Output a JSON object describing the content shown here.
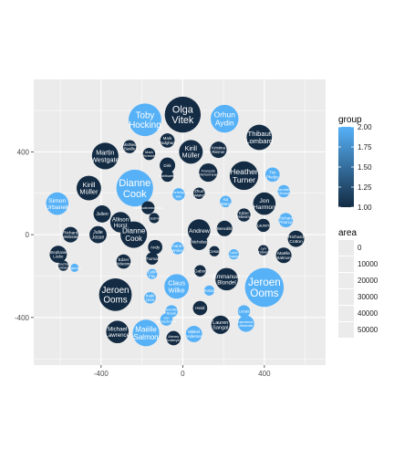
{
  "chart_data": {
    "type": "scatter",
    "subtype": "bubble",
    "title": "",
    "xlabel": "",
    "ylabel": "",
    "xlim": [
      -730,
      700
    ],
    "ylim": [
      -630,
      750
    ],
    "x_ticks": [
      -400,
      0,
      400
    ],
    "x_tick_labels": [
      "-400",
      "0",
      "400"
    ],
    "y_ticks": [
      -400,
      0,
      400
    ],
    "y_tick_labels": [
      "-400",
      "0",
      "400"
    ],
    "grid": true,
    "panel_background": "#ebebeb",
    "grid_major_color": "#ffffff",
    "color_scale": {
      "low": "#132b43",
      "high": "#56b1f7",
      "domain": [
        1.0,
        2.0
      ]
    },
    "legend_group": {
      "title": "group",
      "position": "right",
      "ticks": [
        2.0,
        1.75,
        1.5,
        1.25,
        1.0
      ],
      "tick_labels": [
        "2.00",
        "1.75",
        "1.50",
        "1.25",
        "1.00"
      ]
    },
    "legend_area": {
      "title": "area",
      "position": "right",
      "values": [
        0,
        10000,
        20000,
        30000,
        40000,
        50000
      ],
      "labels": [
        "0",
        "10000",
        "20000",
        "30000",
        "40000",
        "50000"
      ]
    },
    "bubbles": [
      {
        "label": "Olga Vitek",
        "x": 0,
        "y": 580,
        "r": 88,
        "group": 1
      },
      {
        "label": "Toby Hocking",
        "x": -185,
        "y": 555,
        "r": 80,
        "group": 2
      },
      {
        "label": "Orhun Aydin",
        "x": 205,
        "y": 560,
        "r": 68,
        "group": 2
      },
      {
        "label": "Thibaut Lombard",
        "x": 375,
        "y": 470,
        "r": 62,
        "group": 1
      },
      {
        "label": "Mark Padgham",
        "x": -75,
        "y": 455,
        "r": 35,
        "group": 1
      },
      {
        "label": "Mathieu Basille",
        "x": -260,
        "y": 425,
        "r": 32,
        "group": 1
      },
      {
        "label": "Mark Hornick",
        "x": -165,
        "y": 390,
        "r": 30,
        "group": 1
      },
      {
        "label": "Martin Westgate",
        "x": -380,
        "y": 380,
        "r": 65,
        "group": 1
      },
      {
        "label": "Kirill Müller",
        "x": 40,
        "y": 400,
        "r": 58,
        "group": 1
      },
      {
        "label": "Kristina Riemer",
        "x": 175,
        "y": 410,
        "r": 40,
        "group": 1
      },
      {
        "label": "Dirk",
        "x": -75,
        "y": 335,
        "r": 38,
        "group": 1
      },
      {
        "label": "François Michonneau",
        "x": 125,
        "y": 300,
        "r": 45,
        "group": 1
      },
      {
        "label": "Heather Turner",
        "x": 300,
        "y": 285,
        "r": 70,
        "group": 1
      },
      {
        "label": "Tim Phelps",
        "x": 440,
        "y": 290,
        "r": 35,
        "group": 2
      },
      {
        "label": "Dianne Cook",
        "x": -235,
        "y": 225,
        "r": 90,
        "group": 2
      },
      {
        "label": "Kirill Müller",
        "x": -460,
        "y": 225,
        "r": 60,
        "group": 1
      },
      {
        "label": "Simon Urbanek",
        "x": -615,
        "y": 150,
        "r": 55,
        "group": 2
      },
      {
        "label": "Edelbuettel",
        "x": -75,
        "y": 285,
        "r": 30,
        "group": 1
      },
      {
        "label": "Christoph Sax",
        "x": -20,
        "y": 195,
        "r": 30,
        "group": 2
      },
      {
        "label": "Zhun Wang",
        "x": 80,
        "y": 200,
        "r": 28,
        "group": 1
      },
      {
        "label": "Timothée Giraud",
        "x": 495,
        "y": 210,
        "r": 30,
        "group": 2
      },
      {
        "label": "Jon Harmon",
        "x": 400,
        "y": 150,
        "r": 55,
        "group": 1
      },
      {
        "label": "Ka Wang",
        "x": 210,
        "y": 160,
        "r": 28,
        "group": 2
      },
      {
        "label": "Richard Pearce",
        "x": 505,
        "y": 70,
        "r": 35,
        "group": 2
      },
      {
        "label": "Julien",
        "x": -395,
        "y": 100,
        "r": 42,
        "group": 1
      },
      {
        "label": "Balasubramanian",
        "x": -170,
        "y": 130,
        "r": 32,
        "group": 1
      },
      {
        "label": "Casimir",
        "x": -140,
        "y": 80,
        "r": 25,
        "group": 1
      },
      {
        "label": "Edzer Pebesma",
        "x": 300,
        "y": 95,
        "r": 32,
        "group": 1
      },
      {
        "label": "Julie Josse",
        "x": -415,
        "y": 0,
        "r": 42,
        "group": 1
      },
      {
        "label": "Allison Horst",
        "x": -305,
        "y": 60,
        "r": 50,
        "group": 1
      },
      {
        "label": "Dianne Cook",
        "x": -240,
        "y": 0,
        "r": 65,
        "group": 1
      },
      {
        "label": "Andrew",
        "x": 80,
        "y": 20,
        "r": 55,
        "group": 1
      },
      {
        "label": "Nicholas",
        "x": 80,
        "y": -35,
        "r": 40,
        "group": 1
      },
      {
        "label": "Benedikt",
        "x": 205,
        "y": 30,
        "r": 38,
        "group": 1
      },
      {
        "label": "Laurent",
        "x": 395,
        "y": 45,
        "r": 32,
        "group": 1
      },
      {
        "label": "Richard Cotton",
        "x": 555,
        "y": -20,
        "r": 40,
        "group": 1
      },
      {
        "label": "Stephanie Locke",
        "x": -610,
        "y": -95,
        "r": 42,
        "group": 1
      },
      {
        "label": "Richard Webster",
        "x": -550,
        "y": 0,
        "r": 38,
        "group": 1
      },
      {
        "label": "Sacha Epskamp",
        "x": -585,
        "y": -150,
        "r": 25,
        "group": 1
      },
      {
        "label": "Maurice",
        "x": -530,
        "y": -160,
        "r": 20,
        "group": 2
      },
      {
        "label": "Edzer Pebesma",
        "x": -290,
        "y": -130,
        "r": 35,
        "group": 1
      },
      {
        "label": "Andy",
        "x": -135,
        "y": -60,
        "r": 35,
        "group": 1
      },
      {
        "label": "Thomas",
        "x": -150,
        "y": -115,
        "r": 30,
        "group": 1
      },
      {
        "label": "Aaron Wolen",
        "x": -25,
        "y": -65,
        "r": 30,
        "group": 2
      },
      {
        "label": "Cesar",
        "x": 155,
        "y": -80,
        "r": 25,
        "group": 1
      },
      {
        "label": "Luke Zappia",
        "x": 250,
        "y": -95,
        "r": 25,
        "group": 2
      },
      {
        "label": "Lyn Tidwell",
        "x": 395,
        "y": -75,
        "r": 25,
        "group": 1
      },
      {
        "label": "Maëlle Salmon",
        "x": 495,
        "y": -100,
        "r": 38,
        "group": 1
      },
      {
        "label": "Colin Fay",
        "x": -150,
        "y": -190,
        "r": 25,
        "group": 2
      },
      {
        "label": "Gabor",
        "x": 85,
        "y": -175,
        "r": 28,
        "group": 1
      },
      {
        "label": "Emmanuel Blondel",
        "x": 215,
        "y": -215,
        "r": 55,
        "group": 1
      },
      {
        "label": "Jeroen Ooms",
        "x": 400,
        "y": -255,
        "r": 95,
        "group": 2
      },
      {
        "label": "Jeroen Ooms",
        "x": -330,
        "y": -290,
        "r": 80,
        "group": 1
      },
      {
        "label": "Claus Wilke",
        "x": -30,
        "y": -250,
        "r": 60,
        "group": 2
      },
      {
        "label": "Inaki Ucar",
        "x": -160,
        "y": -305,
        "r": 28,
        "group": 2
      },
      {
        "label": "Tomas",
        "x": 130,
        "y": -270,
        "r": 25,
        "group": 2
      },
      {
        "label": "Heidi",
        "x": 85,
        "y": -355,
        "r": 35,
        "group": 1
      },
      {
        "label": "Jennifer Bryan",
        "x": -55,
        "y": -370,
        "r": 30,
        "group": 2
      },
      {
        "label": "Lucas",
        "x": 300,
        "y": -370,
        "r": 30,
        "group": 2
      },
      {
        "label": "Laurence, Amanda",
        "x": 310,
        "y": -430,
        "r": 40,
        "group": 2
      },
      {
        "label": "Lauren Sangal",
        "x": 185,
        "y": -435,
        "r": 45,
        "group": 1
      },
      {
        "label": "Michael Lawrence",
        "x": -320,
        "y": -470,
        "r": 55,
        "group": 1
      },
      {
        "label": "Maëlle Salmon",
        "x": -180,
        "y": -475,
        "r": 65,
        "group": 2
      },
      {
        "label": "van Benschoten",
        "x": -80,
        "y": -410,
        "r": 30,
        "group": 2
      },
      {
        "label": "Alexey Andreyev",
        "x": -45,
        "y": -500,
        "r": 35,
        "group": 1
      },
      {
        "label": "Mikkel Andersen",
        "x": 55,
        "y": -480,
        "r": 40,
        "group": 2
      }
    ]
  }
}
